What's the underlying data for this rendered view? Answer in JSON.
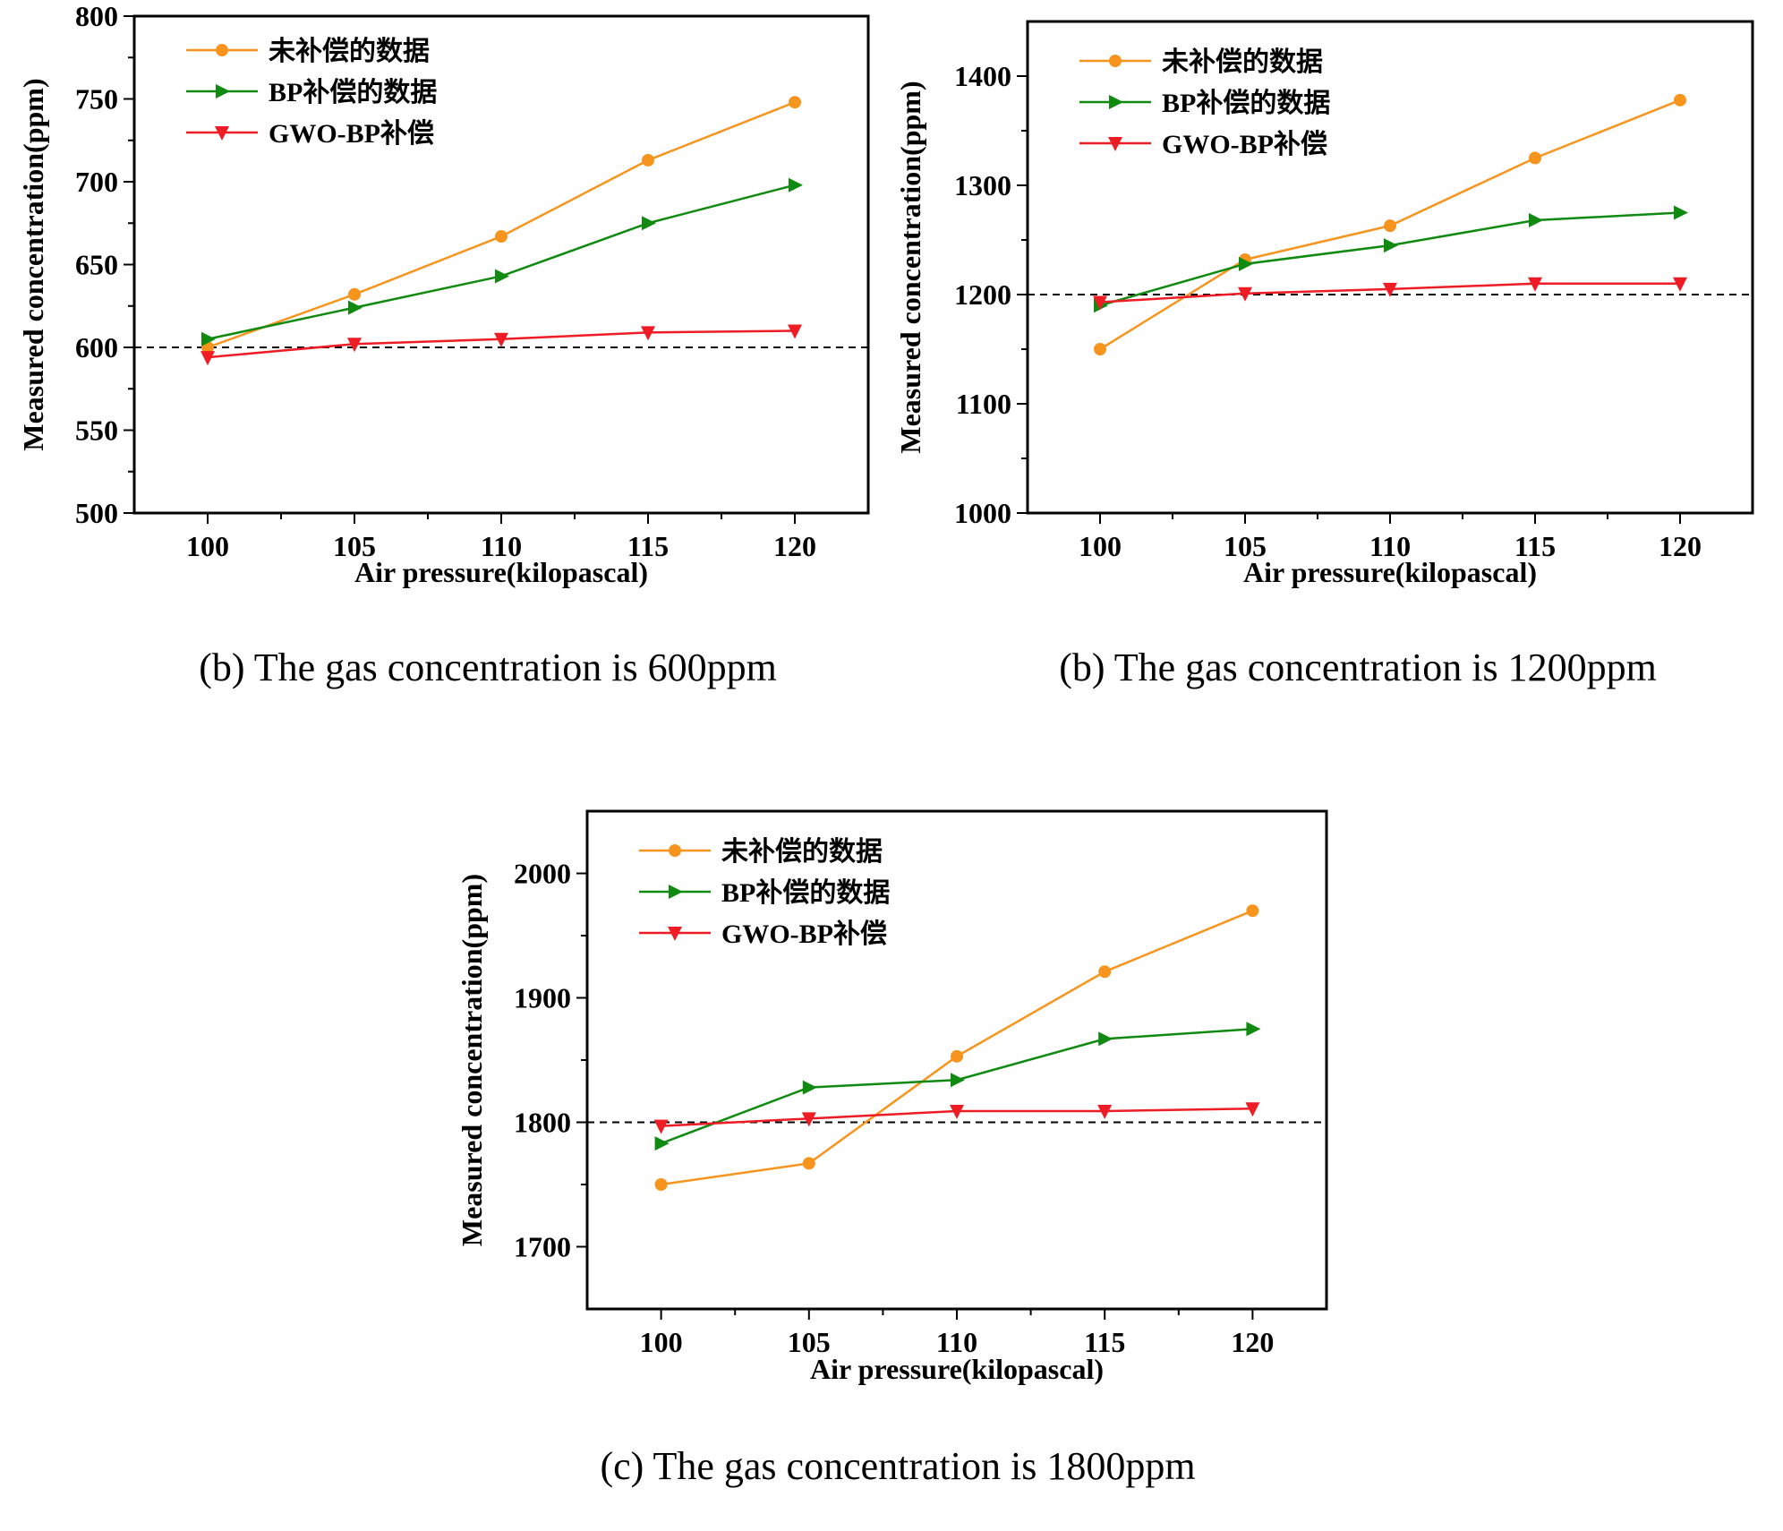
{
  "chart_data": [
    {
      "type": "line",
      "caption": "(b) The gas concentration is 600ppm",
      "xlabel": "Air pressure(kilopascal)",
      "ylabel": "Measured concentration(ppm)",
      "x": [
        100,
        105,
        110,
        115,
        120
      ],
      "xlim": [
        97.5,
        122.5
      ],
      "ylim": [
        500,
        800
      ],
      "yticks": [
        500,
        550,
        600,
        650,
        700,
        750,
        800
      ],
      "reference_line": 600,
      "grid": false,
      "legend_position": "top-left",
      "series": [
        {
          "name": "未补偿的数据",
          "color": "#f7941d",
          "marker": "circle",
          "values": [
            600,
            632,
            667,
            713,
            748
          ]
        },
        {
          "name": "BP补偿的数据",
          "color": "#108a10",
          "marker": "triangle-right",
          "values": [
            605,
            624,
            643,
            675,
            698
          ]
        },
        {
          "name": "GWO-BP补偿",
          "color": "#ee1c25",
          "marker": "triangle-down",
          "values": [
            594,
            602,
            605,
            609,
            610
          ]
        }
      ]
    },
    {
      "type": "line",
      "caption": "(b) The gas concentration is 1200ppm",
      "xlabel": "Air pressure(kilopascal)",
      "ylabel": "Measured concentration(ppm)",
      "x": [
        100,
        105,
        110,
        115,
        120
      ],
      "xlim": [
        97.5,
        122.5
      ],
      "ylim": [
        1000,
        1450
      ],
      "yticks": [
        1000,
        1100,
        1200,
        1300,
        1400
      ],
      "reference_line": 1200,
      "grid": false,
      "legend_position": "top-left",
      "series": [
        {
          "name": "未补偿的数据",
          "color": "#f7941d",
          "marker": "circle",
          "values": [
            1150,
            1232,
            1263,
            1325,
            1378
          ]
        },
        {
          "name": "BP补偿的数据",
          "color": "#108a10",
          "marker": "triangle-right",
          "values": [
            1190,
            1228,
            1245,
            1268,
            1275
          ]
        },
        {
          "name": "GWO-BP补偿",
          "color": "#ee1c25",
          "marker": "triangle-down",
          "values": [
            1193,
            1201,
            1205,
            1210,
            1210
          ]
        }
      ]
    },
    {
      "type": "line",
      "caption": "(c) The gas concentration is 1800ppm",
      "xlabel": "Air pressure(kilopascal)",
      "ylabel": "Measured concentration(ppm)",
      "x": [
        100,
        105,
        110,
        115,
        120
      ],
      "xlim": [
        97.5,
        122.5
      ],
      "ylim": [
        1650,
        2050
      ],
      "yticks": [
        1700,
        1800,
        1900,
        2000
      ],
      "reference_line": 1800,
      "grid": false,
      "legend_position": "top-left",
      "series": [
        {
          "name": "未补偿的数据",
          "color": "#f7941d",
          "marker": "circle",
          "values": [
            1750,
            1767,
            1853,
            1921,
            1970
          ]
        },
        {
          "name": "BP补偿的数据",
          "color": "#108a10",
          "marker": "triangle-right",
          "values": [
            1783,
            1828,
            1834,
            1867,
            1875
          ]
        },
        {
          "name": "GWO-BP补偿",
          "color": "#ee1c25",
          "marker": "triangle-down",
          "values": [
            1797,
            1803,
            1809,
            1809,
            1811
          ]
        }
      ]
    }
  ]
}
